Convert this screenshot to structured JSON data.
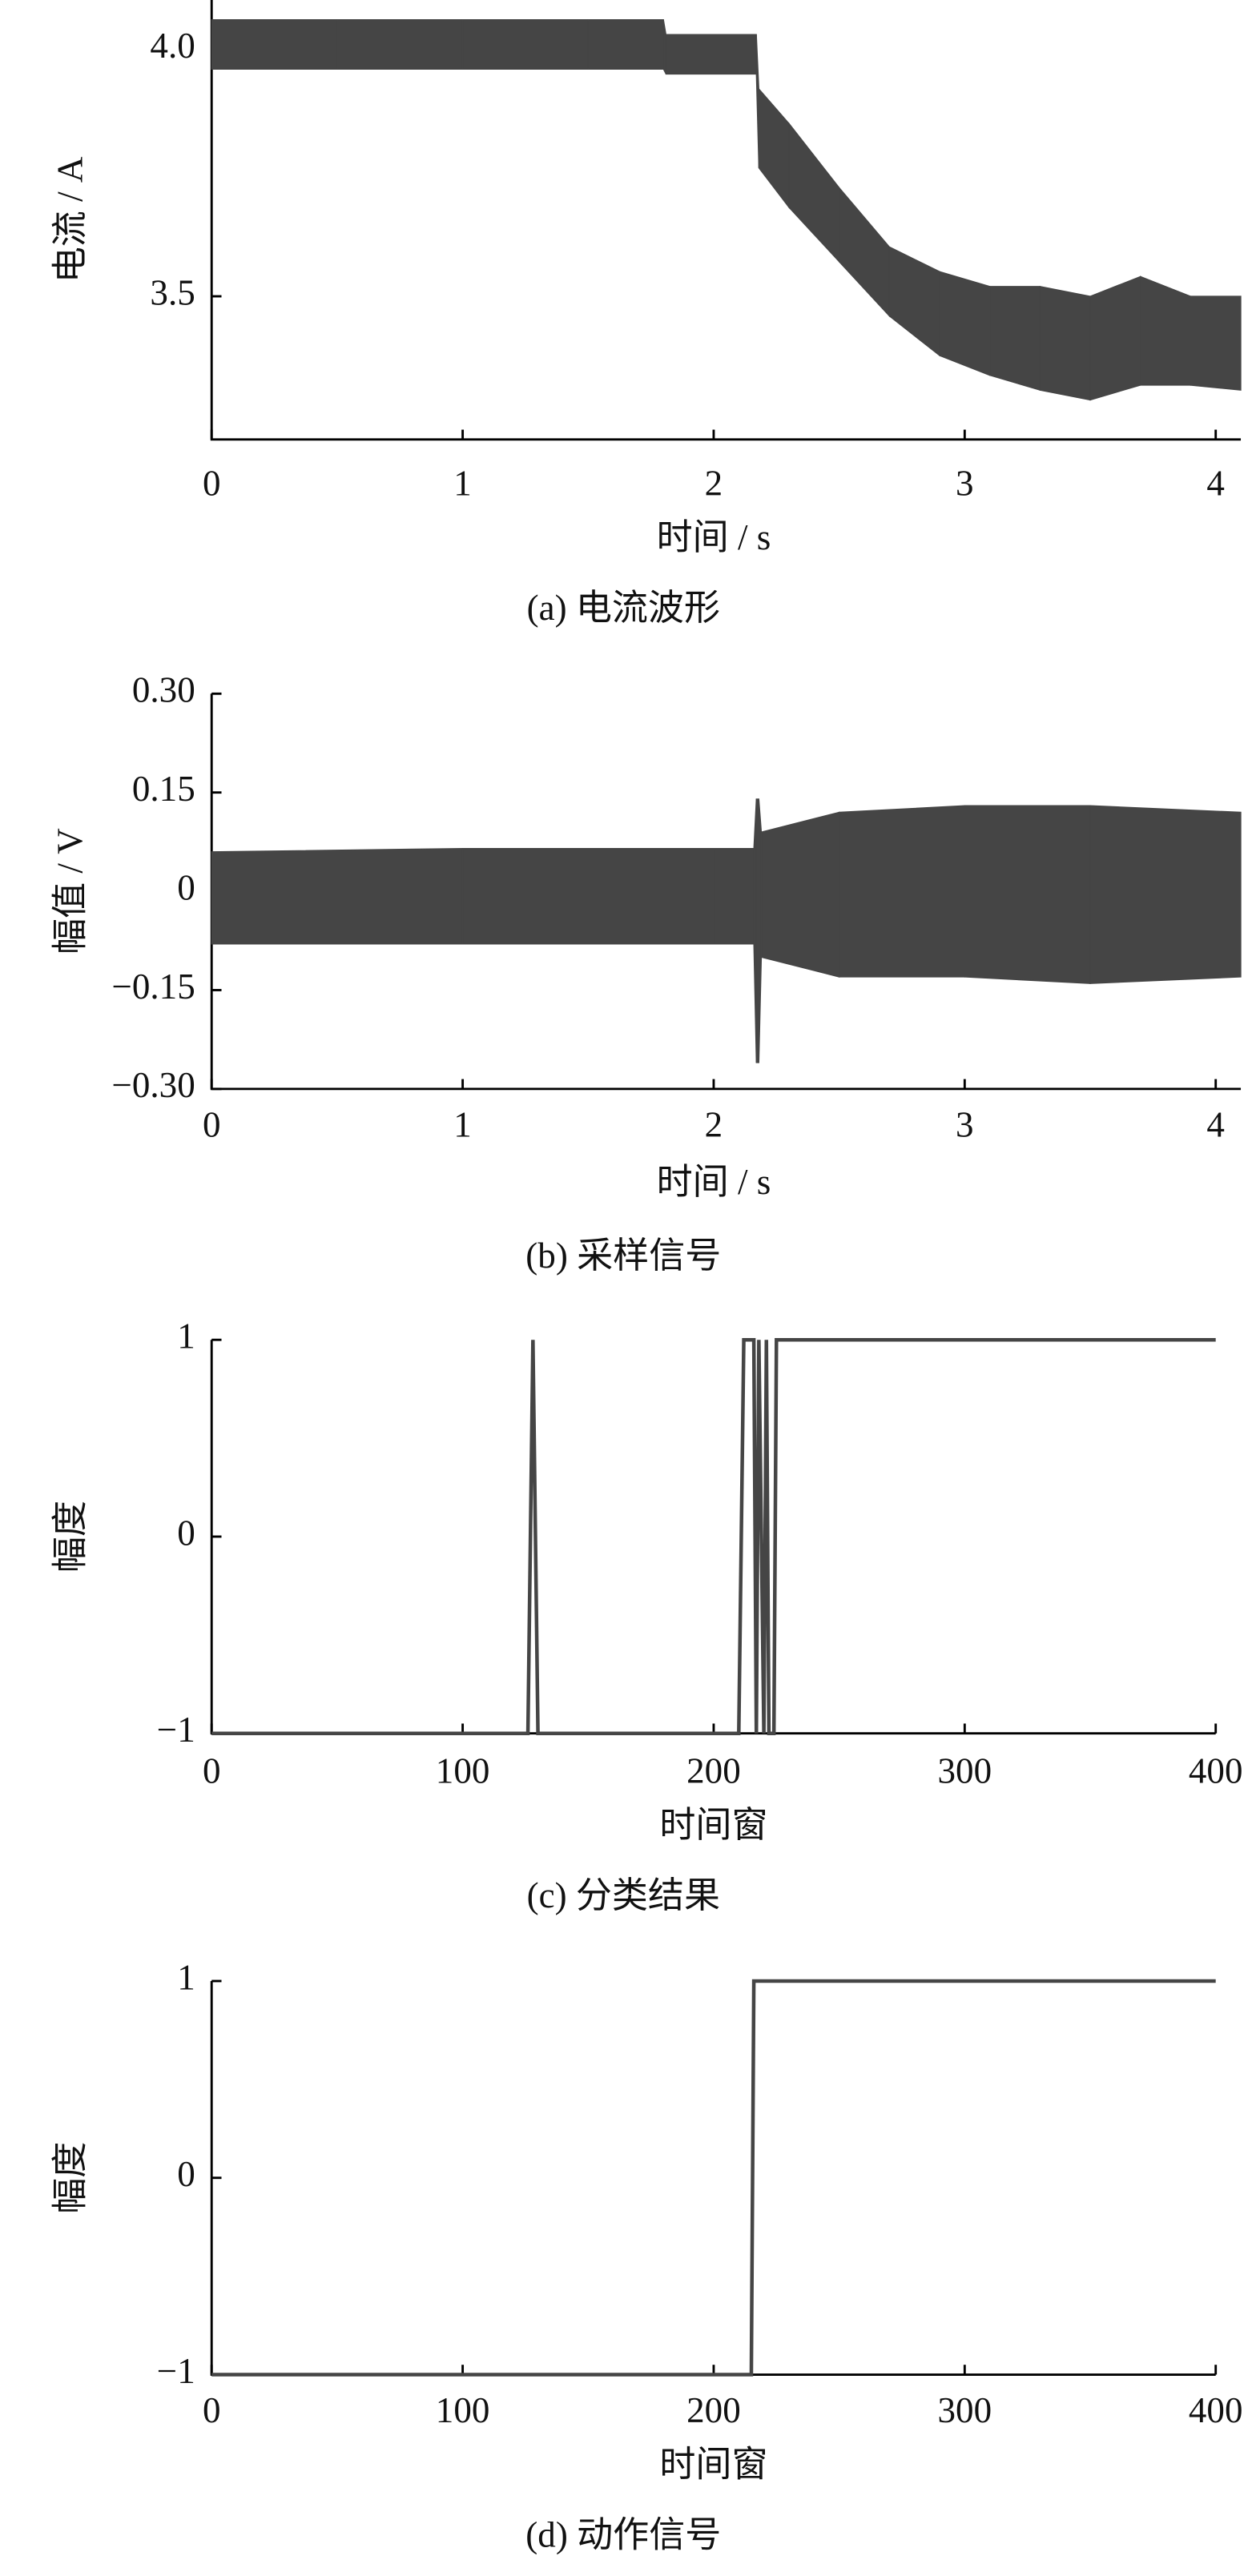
{
  "chart_data": [
    {
      "type": "band",
      "caption": "(a)  电流波形",
      "xlabel": "时间 / s",
      "ylabel": "电流 / A",
      "color": "#454545",
      "x": [
        0,
        0.5,
        1,
        1.5,
        1.8,
        1.81,
        2.17,
        2.18,
        2.3,
        2.5,
        2.7,
        2.9,
        3.1,
        3.3,
        3.5,
        3.7,
        3.9,
        4.1
      ],
      "high": [
        4.06,
        4.06,
        4.06,
        4.06,
        4.06,
        4.03,
        4.03,
        3.92,
        3.85,
        3.72,
        3.6,
        3.55,
        3.52,
        3.52,
        3.5,
        3.54,
        3.5,
        3.5
      ],
      "low": [
        3.96,
        3.96,
        3.96,
        3.96,
        3.96,
        3.95,
        3.95,
        3.76,
        3.68,
        3.57,
        3.46,
        3.38,
        3.34,
        3.31,
        3.29,
        3.32,
        3.32,
        3.31
      ],
      "xlim": [
        0,
        4.1
      ],
      "xticks": [
        0,
        1,
        2,
        3,
        4
      ],
      "ylim": [
        3.21,
        4.1
      ],
      "yticks": [
        {
          "value": 4,
          "label": "4.0"
        },
        3.5
      ]
    },
    {
      "type": "band",
      "caption": "(b)  采样信号",
      "xlabel": "时间 / s",
      "ylabel": "幅值 / V",
      "color": "#454545",
      "x": [
        0,
        1,
        2,
        2.16,
        2.17,
        2.18,
        2.19,
        2.5,
        3,
        3.5,
        4.1
      ],
      "high": [
        0.06,
        0.065,
        0.065,
        0.065,
        0.14,
        0.14,
        0.09,
        0.12,
        0.13,
        0.13,
        0.12
      ],
      "low": [
        -0.08,
        -0.08,
        -0.08,
        -0.08,
        -0.26,
        -0.26,
        -0.1,
        -0.13,
        -0.13,
        -0.14,
        -0.13
      ],
      "xlim": [
        0,
        4.1
      ],
      "xticks": [
        0,
        1,
        2,
        3,
        4
      ],
      "ylim": [
        -0.3,
        0.3
      ],
      "yticks": [
        {
          "value": 0.3,
          "label": "0.30"
        },
        {
          "value": 0.15,
          "label": "0.15"
        },
        0,
        {
          "value": -0.15,
          "label": "−0.15"
        },
        {
          "value": -0.3,
          "label": "−0.30"
        }
      ]
    },
    {
      "type": "line",
      "caption": "(c)  分类结果",
      "xlabel": "时间窗",
      "ylabel": "幅度",
      "color": "#454545",
      "x": [
        0,
        126,
        128,
        130,
        210,
        212,
        216,
        217,
        218,
        220,
        221,
        222,
        224,
        225,
        400
      ],
      "values": [
        -1,
        -1,
        1,
        -1,
        -1,
        1,
        1,
        -1,
        1,
        -1,
        1,
        -1,
        -1,
        1,
        1
      ],
      "xlim": [
        0,
        400
      ],
      "xticks": [
        0,
        100,
        200,
        300,
        400
      ],
      "ylim": [
        -1,
        1
      ],
      "yticks": [
        1,
        0,
        {
          "value": -1,
          "label": "−1"
        }
      ]
    },
    {
      "type": "line",
      "caption": "(d)  动作信号",
      "xlabel": "时间窗",
      "ylabel": "幅度",
      "color": "#454545",
      "x": [
        0,
        215,
        216,
        400
      ],
      "values": [
        -1,
        -1,
        1,
        1
      ],
      "xlim": [
        0,
        400
      ],
      "xticks": [
        0,
        100,
        200,
        300,
        400
      ],
      "ylim": [
        -1,
        1
      ],
      "yticks": [
        1,
        0,
        {
          "value": -1,
          "label": "−1"
        }
      ]
    }
  ]
}
